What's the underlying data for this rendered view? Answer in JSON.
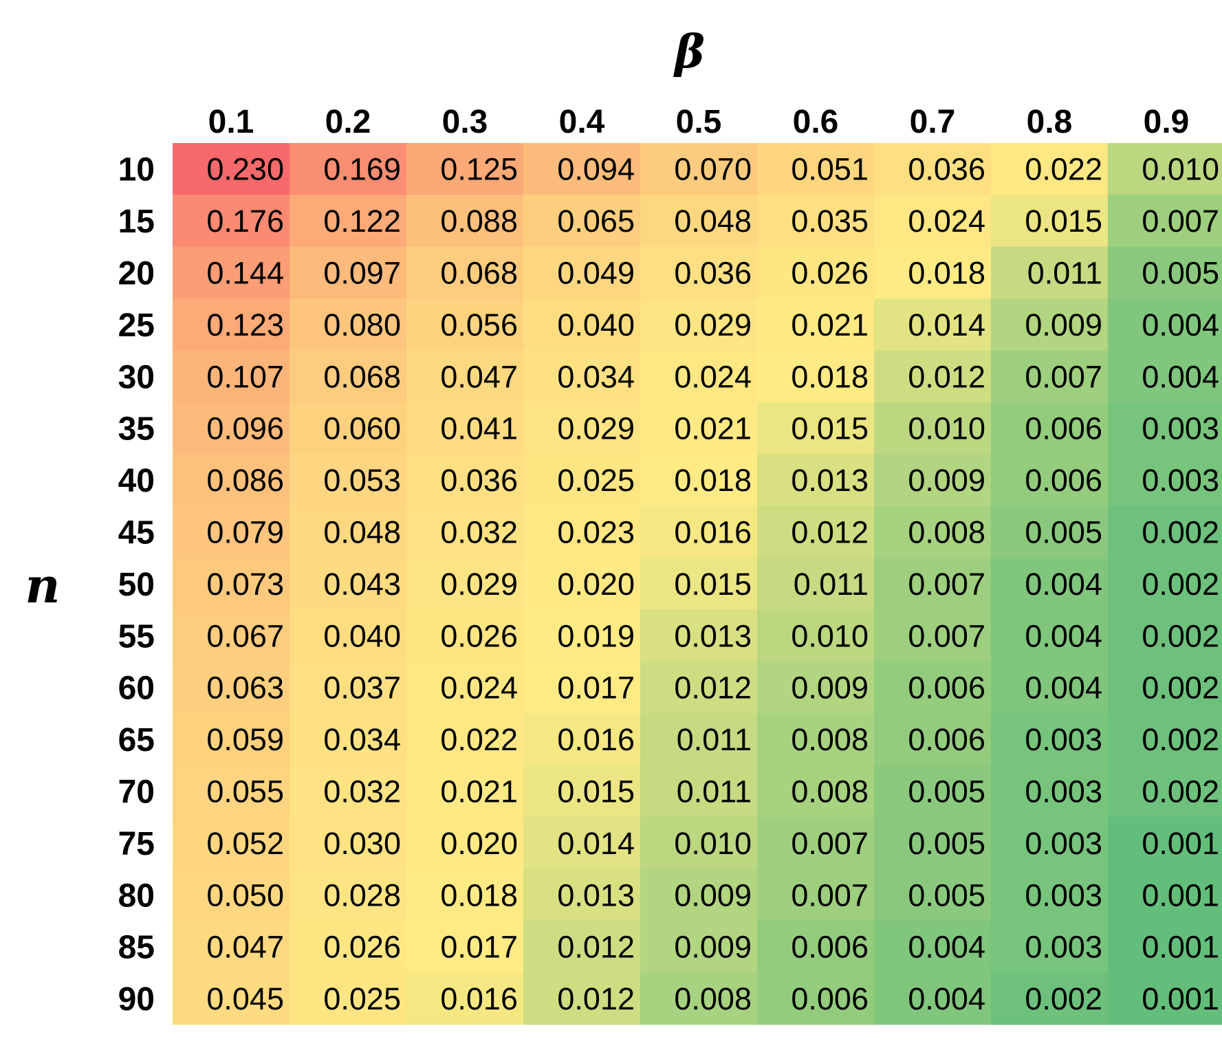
{
  "chart_data": {
    "type": "heatmap",
    "xlabel": "β",
    "ylabel": "n",
    "x": [
      "0.1",
      "0.2",
      "0.3",
      "0.4",
      "0.5",
      "0.6",
      "0.7",
      "0.8",
      "0.9"
    ],
    "y": [
      "10",
      "15",
      "20",
      "25",
      "30",
      "35",
      "40",
      "45",
      "50",
      "55",
      "60",
      "65",
      "70",
      "75",
      "80",
      "85",
      "90"
    ],
    "values": [
      [
        "0.230",
        "0.169",
        "0.125",
        "0.094",
        "0.070",
        "0.051",
        "0.036",
        "0.022",
        "0.010"
      ],
      [
        "0.176",
        "0.122",
        "0.088",
        "0.065",
        "0.048",
        "0.035",
        "0.024",
        "0.015",
        "0.007"
      ],
      [
        "0.144",
        "0.097",
        "0.068",
        "0.049",
        "0.036",
        "0.026",
        "0.018",
        "0.011",
        "0.005"
      ],
      [
        "0.123",
        "0.080",
        "0.056",
        "0.040",
        "0.029",
        "0.021",
        "0.014",
        "0.009",
        "0.004"
      ],
      [
        "0.107",
        "0.068",
        "0.047",
        "0.034",
        "0.024",
        "0.018",
        "0.012",
        "0.007",
        "0.004"
      ],
      [
        "0.096",
        "0.060",
        "0.041",
        "0.029",
        "0.021",
        "0.015",
        "0.010",
        "0.006",
        "0.003"
      ],
      [
        "0.086",
        "0.053",
        "0.036",
        "0.025",
        "0.018",
        "0.013",
        "0.009",
        "0.006",
        "0.003"
      ],
      [
        "0.079",
        "0.048",
        "0.032",
        "0.023",
        "0.016",
        "0.012",
        "0.008",
        "0.005",
        "0.002"
      ],
      [
        "0.073",
        "0.043",
        "0.029",
        "0.020",
        "0.015",
        "0.011",
        "0.007",
        "0.004",
        "0.002"
      ],
      [
        "0.067",
        "0.040",
        "0.026",
        "0.019",
        "0.013",
        "0.010",
        "0.007",
        "0.004",
        "0.002"
      ],
      [
        "0.063",
        "0.037",
        "0.024",
        "0.017",
        "0.012",
        "0.009",
        "0.006",
        "0.004",
        "0.002"
      ],
      [
        "0.059",
        "0.034",
        "0.022",
        "0.016",
        "0.011",
        "0.008",
        "0.006",
        "0.003",
        "0.002"
      ],
      [
        "0.055",
        "0.032",
        "0.021",
        "0.015",
        "0.011",
        "0.008",
        "0.005",
        "0.003",
        "0.002"
      ],
      [
        "0.052",
        "0.030",
        "0.020",
        "0.014",
        "0.010",
        "0.007",
        "0.005",
        "0.003",
        "0.001"
      ],
      [
        "0.050",
        "0.028",
        "0.018",
        "0.013",
        "0.009",
        "0.007",
        "0.005",
        "0.003",
        "0.001"
      ],
      [
        "0.047",
        "0.026",
        "0.017",
        "0.012",
        "0.009",
        "0.006",
        "0.004",
        "0.003",
        "0.001"
      ],
      [
        "0.045",
        "0.025",
        "0.016",
        "0.012",
        "0.008",
        "0.006",
        "0.004",
        "0.002",
        "0.001"
      ]
    ],
    "colorscale": [
      "#63be7b",
      "#ffeb84",
      "#f8696b"
    ],
    "grid": false,
    "legend": false
  }
}
